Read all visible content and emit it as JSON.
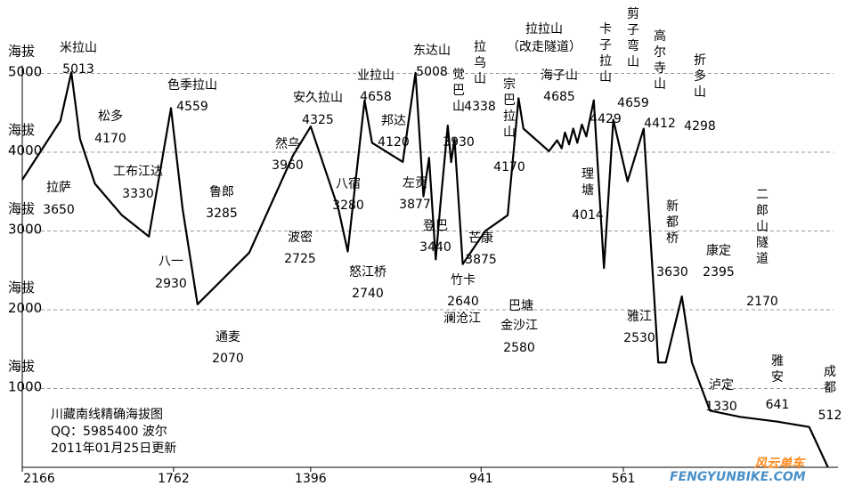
{
  "chart_data": {
    "type": "line",
    "title": "川藏南线精确海拔图",
    "info_lines": [
      "川藏南线精确海拔图",
      "QQ：5985400  波尔",
      "2011年01月25日更新"
    ],
    "watermark": [
      "风云单车",
      "FENGYUNBIKE.COM"
    ],
    "y_unit_label": "海拔",
    "y_ticks": [
      {
        "label": "1000",
        "value": 1000
      },
      {
        "label": "2000",
        "value": 2000
      },
      {
        "label": "3000",
        "value": 3000
      },
      {
        "label": "4000",
        "value": 4000
      },
      {
        "label": "5000",
        "value": 5000
      }
    ],
    "ylim": [
      0,
      5300
    ],
    "x_ticks": [
      "2166",
      "1762",
      "1396",
      "941",
      "561"
    ],
    "x_tick_km": [
      2166,
      1762,
      1396,
      941,
      561
    ],
    "xlim": [
      2166,
      0
    ],
    "profile": [
      [
        2166,
        3650
      ],
      [
        2064,
        4400
      ],
      [
        2035,
        5013
      ],
      [
        2012,
        4170
      ],
      [
        1972,
        3600
      ],
      [
        1900,
        3200
      ],
      [
        1828,
        2930
      ],
      [
        1769,
        4559
      ],
      [
        1738,
        3285
      ],
      [
        1698,
        2070
      ],
      [
        1560,
        2725
      ],
      [
        1443,
        3960
      ],
      [
        1396,
        4325
      ],
      [
        1322,
        3280
      ],
      [
        1297,
        2740
      ],
      [
        1252,
        4658
      ],
      [
        1232,
        4120
      ],
      [
        1150,
        3877
      ],
      [
        1116,
        5008
      ],
      [
        1095,
        3440
      ],
      [
        1080,
        3930
      ],
      [
        1062,
        2640
      ],
      [
        1050,
        3320
      ],
      [
        1030,
        4338
      ],
      [
        1021,
        3875
      ],
      [
        1012,
        4170
      ],
      [
        990,
        2580
      ],
      [
        930,
        3000
      ],
      [
        870,
        3200
      ],
      [
        841,
        4685
      ],
      [
        828,
        4300
      ],
      [
        760,
        4014
      ],
      [
        738,
        4150
      ],
      [
        726,
        4050
      ],
      [
        717,
        4250
      ],
      [
        706,
        4100
      ],
      [
        695,
        4300
      ],
      [
        684,
        4120
      ],
      [
        672,
        4350
      ],
      [
        660,
        4200
      ],
      [
        640,
        4659
      ],
      [
        613,
        2530
      ],
      [
        588,
        4412
      ],
      [
        550,
        3630
      ],
      [
        507,
        4298
      ],
      [
        468,
        1330
      ],
      [
        448,
        1330
      ],
      [
        405,
        2170
      ],
      [
        378,
        1330
      ],
      [
        330,
        720
      ],
      [
        250,
        641
      ],
      [
        150,
        580
      ],
      [
        65,
        512
      ],
      [
        15,
        0
      ]
    ],
    "places": [
      {
        "name": "米拉山",
        "elev": "5013"
      },
      {
        "name": "拉萨",
        "elev": "3650"
      },
      {
        "name": "松多",
        "elev": "4170"
      },
      {
        "name": "工布江达",
        "elev": "3330"
      },
      {
        "name": "八一",
        "elev": "2930"
      },
      {
        "name": "色季拉山",
        "elev": "4559"
      },
      {
        "name": "鲁郎",
        "elev": "3285"
      },
      {
        "name": "通麦",
        "elev": "2070"
      },
      {
        "name": "波密",
        "elev": "2725"
      },
      {
        "name": "然乌",
        "elev": "3960"
      },
      {
        "name": "安久拉山",
        "elev": "4325"
      },
      {
        "name": "八宿",
        "elev": "3280"
      },
      {
        "name": "怒江桥",
        "elev": "2740"
      },
      {
        "name": "业拉山",
        "elev": "4658"
      },
      {
        "name": "邦达",
        "elev": "4120"
      },
      {
        "name": "左贡",
        "elev": "3877"
      },
      {
        "name": "东达山",
        "elev": "5008"
      },
      {
        "name": "登巴",
        "elev": "3440"
      },
      {
        "name": "觉巴山",
        "elev": "3930"
      },
      {
        "name": "竹卡",
        "elev": "2640"
      },
      {
        "name": "澜沧江",
        "elev": ""
      },
      {
        "name": "拉乌山",
        "elev": "4338"
      },
      {
        "name": "芒康",
        "elev": "3875"
      },
      {
        "name": "宗巴拉山",
        "elev": "4170"
      },
      {
        "name": "巴塘",
        "elev": ""
      },
      {
        "name": "金沙江",
        "elev": "2580"
      },
      {
        "name": "拉拉山",
        "elev": ""
      },
      {
        "name": "（改走隧道）",
        "elev": ""
      },
      {
        "name": "海子山",
        "elev": "4685"
      },
      {
        "name": "理塘",
        "elev": "4014"
      },
      {
        "name": "卡子拉山",
        "elev": "4429"
      },
      {
        "name": "剪子弯山",
        "elev": "4659"
      },
      {
        "name": "高尔寺山",
        "elev": "4412"
      },
      {
        "name": "雅江",
        "elev": "2530"
      },
      {
        "name": "新都桥",
        "elev": "3630"
      },
      {
        "name": "折多山",
        "elev": "4298"
      },
      {
        "name": "康定",
        "elev": "2395"
      },
      {
        "name": "二郎山隧道",
        "elev": "2170"
      },
      {
        "name": "泸定",
        "elev": "1330"
      },
      {
        "name": "雅安",
        "elev": "641"
      },
      {
        "name": "成都",
        "elev": "512"
      }
    ],
    "grid": "dashed horizontal at each y tick",
    "xlabel": "",
    "ylabel": ""
  }
}
